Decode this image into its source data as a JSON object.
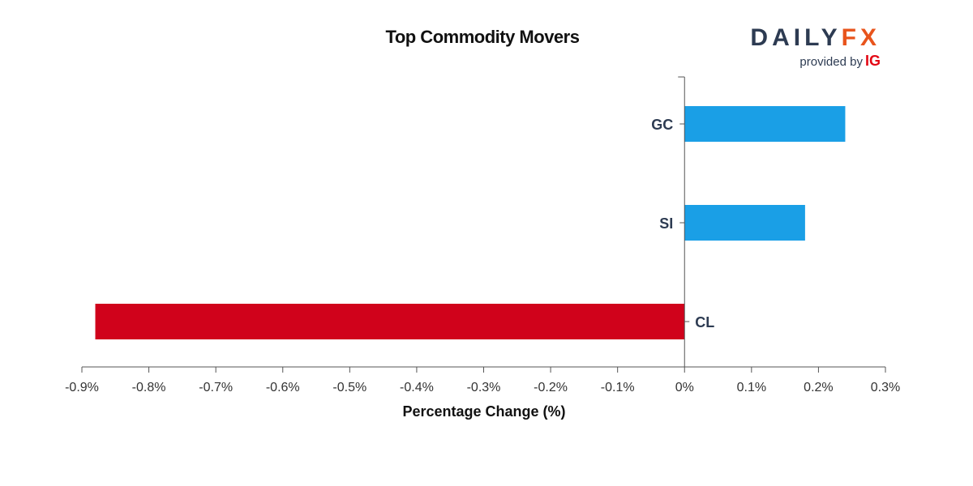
{
  "chart_data": {
    "type": "bar",
    "orientation": "horizontal",
    "title": "Top Commodity Movers",
    "xlabel": "Percentage Change (%)",
    "ylabel": "",
    "categories": [
      "GC",
      "SI",
      "CL"
    ],
    "values": [
      0.24,
      0.18,
      -0.88
    ],
    "xlim": [
      -0.9,
      0.3
    ],
    "xticks": [
      -0.9,
      -0.8,
      -0.7,
      -0.6,
      -0.5,
      -0.4,
      -0.3,
      -0.2,
      -0.1,
      0,
      0.1,
      0.2,
      0.3
    ],
    "xtick_labels": [
      "-0.9%",
      "-0.8%",
      "-0.7%",
      "-0.6%",
      "-0.5%",
      "-0.4%",
      "-0.3%",
      "-0.2%",
      "-0.1%",
      "0%",
      "0.1%",
      "0.2%",
      "0.3%"
    ],
    "grid": false,
    "legend": "none",
    "colors": {
      "positive": "#1a9fe6",
      "negative": "#d0021b",
      "axis": "#555555"
    }
  },
  "branding": {
    "logo_daily": "DAILY",
    "logo_fx": "FX",
    "provided_by": "provided by",
    "ig": "IG"
  }
}
